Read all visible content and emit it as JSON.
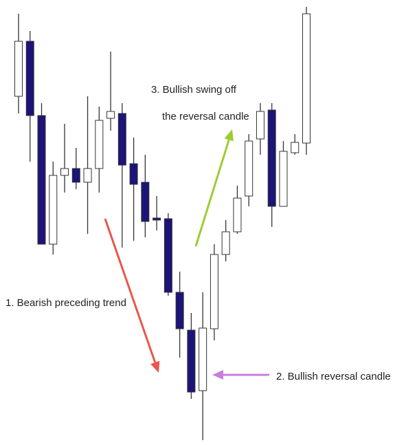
{
  "chart_data": {
    "type": "candlestick",
    "ylim": [
      0,
      647
    ],
    "up_color": "#ffffff",
    "down_color": "#1c1478",
    "outline_color": "#333333",
    "series": {
      "open": [
        507,
        587,
        479,
        292,
        392,
        402,
        382,
        402,
        475,
        482,
        409,
        382,
        330,
        329,
        222,
        167,
        79,
        169,
        277,
        310,
        362,
        445,
        487,
        347,
        425,
        439
      ],
      "high": [
        627,
        602,
        497,
        412,
        467,
        432,
        507,
        492,
        572,
        497,
        447,
        422,
        362,
        337,
        252,
        192,
        222,
        292,
        327,
        377,
        452,
        497,
        497,
        442,
        452,
        637
      ],
      "low": [
        482,
        412,
        292,
        277,
        367,
        372,
        307,
        367,
        457,
        287,
        297,
        302,
        312,
        217,
        127,
        67,
        7,
        152,
        267,
        307,
        347,
        422,
        317,
        347,
        422,
        422
      ],
      "close": [
        587,
        479,
        292,
        392,
        402,
        382,
        402,
        472,
        485,
        407,
        379,
        325,
        327,
        222,
        169,
        77,
        170,
        277,
        310,
        359,
        442,
        485,
        347,
        427,
        440,
        627
      ]
    },
    "annotations": [
      {
        "text": "1. Bearish preceding trend",
        "color": "#e8574a"
      },
      {
        "text": "3. Bullish swing off",
        "color": "#9acd32"
      },
      {
        "text": "the reversal candle",
        "color": "#9acd32"
      },
      {
        "text": "2. Bullish reversal candle",
        "color": "#c77ee0"
      }
    ]
  }
}
